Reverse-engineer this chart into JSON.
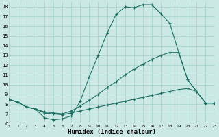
{
  "xlabel": "Humidex (Indice chaleur)",
  "xlim": [
    0,
    23
  ],
  "ylim": [
    6,
    18.5
  ],
  "yticks": [
    6,
    7,
    8,
    9,
    10,
    11,
    12,
    13,
    14,
    15,
    16,
    17,
    18
  ],
  "xticks": [
    0,
    1,
    2,
    3,
    4,
    5,
    6,
    7,
    8,
    9,
    10,
    11,
    12,
    13,
    14,
    15,
    16,
    17,
    18,
    19,
    20,
    21,
    22,
    23
  ],
  "bg_color": "#cce8e4",
  "line_color": "#1a6e62",
  "grid_color": "#a8d4ce",
  "line1_x": [
    0,
    1,
    2,
    3,
    4,
    5,
    6,
    7,
    8,
    9,
    10,
    11,
    12,
    13,
    14,
    15,
    16,
    17,
    18,
    19,
    20,
    21,
    22,
    23
  ],
  "line1_y": [
    8.5,
    8.2,
    7.7,
    7.5,
    6.6,
    6.4,
    6.5,
    6.8,
    8.3,
    10.8,
    13.0,
    15.3,
    17.2,
    18.0,
    17.9,
    18.2,
    18.2,
    17.3,
    16.3,
    13.3,
    10.5,
    9.3,
    8.1,
    8.1
  ],
  "line2_x": [
    0,
    1,
    2,
    3,
    4,
    5,
    6,
    7,
    8,
    9,
    10,
    11,
    12,
    13,
    14,
    15,
    16,
    17,
    18,
    19,
    20,
    21,
    22,
    23
  ],
  "line2_y": [
    8.5,
    8.2,
    7.7,
    7.5,
    7.2,
    7.1,
    7.0,
    7.3,
    7.8,
    8.4,
    9.0,
    9.7,
    10.3,
    11.0,
    11.6,
    12.1,
    12.6,
    13.0,
    13.3,
    13.3,
    10.5,
    9.3,
    8.1,
    8.1
  ],
  "line3_x": [
    0,
    1,
    2,
    3,
    4,
    5,
    6,
    7,
    8,
    9,
    10,
    11,
    12,
    13,
    14,
    15,
    16,
    17,
    18,
    19,
    20,
    21,
    22,
    23
  ],
  "line3_y": [
    8.5,
    8.2,
    7.7,
    7.5,
    7.1,
    7.0,
    6.9,
    7.1,
    7.3,
    7.5,
    7.7,
    7.9,
    8.1,
    8.3,
    8.5,
    8.7,
    8.9,
    9.1,
    9.3,
    9.5,
    9.6,
    9.3,
    8.1,
    8.1
  ]
}
